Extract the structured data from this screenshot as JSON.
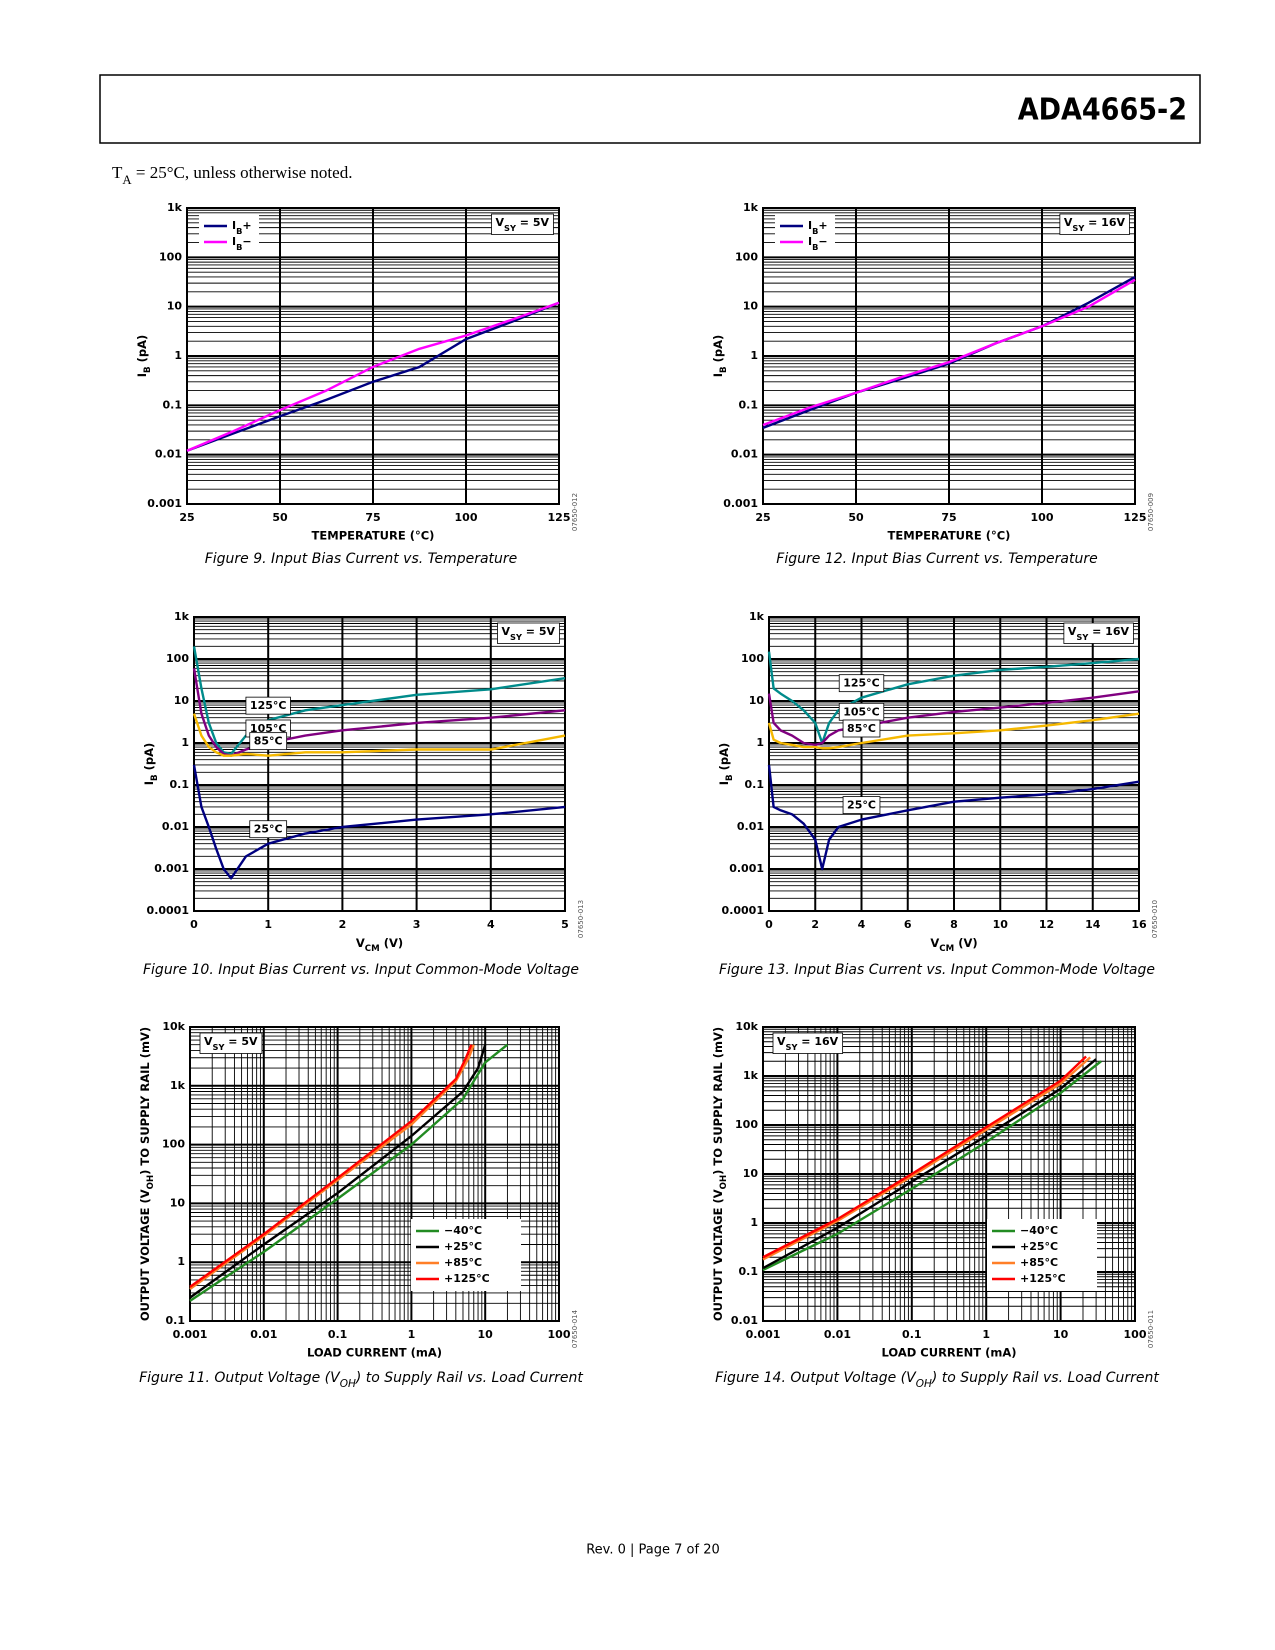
{
  "header": {
    "title": "ADA4665-2"
  },
  "note": [
    "T",
    "A",
    " = 25°C, unless otherwise noted."
  ],
  "footer": "Rev. 0 | Page 7 of 20",
  "chart_data": [
    {
      "type": "line",
      "title": "Figure 9. Input Bias Current vs. Temperature",
      "code": "07650-012",
      "xlabel": "TEMPERATURE (°C)",
      "ylabel": [
        "I",
        "B",
        " (pA)"
      ],
      "annotation": [
        "V",
        "SY",
        " = 5V"
      ],
      "annotation_corner": "upper right",
      "legend": "upper left",
      "x": [
        25,
        37.5,
        50,
        62.5,
        75,
        87.5,
        100,
        112.5,
        125
      ],
      "xlim": [
        25,
        125
      ],
      "xticks": [
        25,
        50,
        75,
        100,
        125
      ],
      "ylog": true,
      "ylim": [
        0.001,
        1000
      ],
      "yticks": [
        0.001,
        0.01,
        0.1,
        1,
        10,
        100,
        {
          "value": 1000,
          "label": "1k"
        }
      ],
      "grid": true,
      "series": [
        {
          "name": [
            "I",
            "B",
            "+"
          ],
          "color": "#000080",
          "values": [
            0.012,
            0.027,
            0.06,
            0.13,
            0.3,
            0.6,
            2.2,
            5,
            12
          ]
        },
        {
          "name": [
            "I",
            "B",
            "−"
          ],
          "color": "#ff00ff",
          "values": [
            0.012,
            0.03,
            0.08,
            0.2,
            0.6,
            1.4,
            2.6,
            5.5,
            12
          ]
        }
      ]
    },
    {
      "type": "line",
      "title": "Figure 10. Input Bias Current vs. Input Common-Mode Voltage",
      "code": "07650-013",
      "xlabel": [
        "V",
        "CM",
        " (V)"
      ],
      "ylabel": [
        "I",
        "B",
        " (pA)"
      ],
      "annotation": [
        "V",
        "SY",
        " = 5V"
      ],
      "annotation_corner": "upper right",
      "legend": "inline",
      "x": [
        0,
        0.1,
        0.2,
        0.3,
        0.4,
        0.5,
        0.7,
        1,
        1.5,
        2,
        3,
        4,
        5
      ],
      "xlim": [
        0,
        5
      ],
      "xticks": [
        0,
        1,
        2,
        3,
        4,
        5
      ],
      "ylog": true,
      "ylim": [
        0.0001,
        1000
      ],
      "yticks": [
        0.0001,
        0.001,
        0.01,
        0.1,
        1,
        10,
        100,
        {
          "value": 1000,
          "label": "1k"
        }
      ],
      "grid": true,
      "series": [
        {
          "name": "125°C",
          "color": "#008b8b",
          "values": [
            200,
            20,
            3,
            1,
            0.6,
            0.55,
            1.5,
            3.5,
            6,
            8,
            14,
            19,
            35
          ]
        },
        {
          "name": "105°C",
          "color": "#800080",
          "values": [
            60,
            5,
            1.5,
            0.8,
            0.55,
            0.5,
            0.7,
            1,
            1.5,
            2,
            3,
            4,
            6
          ]
        },
        {
          "name": "85°C",
          "color": "#f5b800",
          "values": [
            5,
            1.5,
            0.8,
            0.6,
            0.5,
            0.5,
            0.55,
            0.5,
            0.6,
            0.6,
            0.7,
            0.7,
            1.5
          ]
        },
        {
          "name": "25°C",
          "color": "#000080",
          "values": [
            0.3,
            0.03,
            0.01,
            0.003,
            0.001,
            0.0006,
            0.002,
            0.004,
            0.007,
            0.01,
            0.015,
            0.02,
            0.03
          ]
        }
      ]
    },
    {
      "type": "line",
      "title": [
        "Figure 11. Output Voltage (V",
        "OH",
        ") to Supply Rail vs. Load Current"
      ],
      "code": "07650-014",
      "xlabel": "LOAD CURRENT (mA)",
      "ylabel": [
        "OUTPUT VOLTAGE (V",
        "OH",
        ") TO SUPPLY RAIL (mV)"
      ],
      "annotation": [
        "V",
        "SY",
        " = 5V"
      ],
      "annotation_corner": "upper left",
      "legend": "lower right",
      "xlog": true,
      "xlim": [
        0.001,
        100
      ],
      "xticks": [
        0.001,
        0.01,
        0.1,
        1,
        10,
        100
      ],
      "ylog": true,
      "ylim": [
        0.1,
        10000
      ],
      "yticks": [
        0.1,
        1,
        10,
        100,
        {
          "value": 1000,
          "label": "1k"
        },
        {
          "value": 10000,
          "label": "10k"
        }
      ],
      "grid": true,
      "series": [
        {
          "name": "−40°C",
          "color": "#228b22",
          "x": [
            0.001,
            0.01,
            0.1,
            1,
            5,
            10,
            20
          ],
          "values": [
            0.22,
            1.5,
            12,
            100,
            600,
            2500,
            5000
          ]
        },
        {
          "name": "+25°C",
          "color": "#000000",
          "x": [
            0.001,
            0.01,
            0.1,
            1,
            5,
            8,
            10
          ],
          "values": [
            0.25,
            2,
            15,
            140,
            800,
            2000,
            5000
          ]
        },
        {
          "name": "+85°C",
          "color": "#ff7f27",
          "x": [
            0.001,
            0.01,
            0.1,
            1,
            4,
            6,
            7
          ],
          "values": [
            0.35,
            2.8,
            25,
            220,
            1200,
            3000,
            5000
          ]
        },
        {
          "name": "+125°C",
          "color": "#ff0000",
          "x": [
            0.001,
            0.01,
            0.1,
            1,
            4,
            5.5,
            6.5
          ],
          "values": [
            0.38,
            3,
            27,
            250,
            1300,
            3000,
            5000
          ]
        }
      ]
    },
    {
      "type": "line",
      "title": "Figure 12. Input Bias Current vs. Temperature",
      "code": "07650-009",
      "xlabel": "TEMPERATURE (°C)",
      "ylabel": [
        "I",
        "B",
        " (pA)"
      ],
      "annotation": [
        "V",
        "SY",
        " = 16V"
      ],
      "annotation_corner": "upper right",
      "legend": "upper left",
      "x": [
        25,
        37.5,
        50,
        62.5,
        75,
        87.5,
        100,
        112.5,
        125
      ],
      "xlim": [
        25,
        125
      ],
      "xticks": [
        25,
        50,
        75,
        100,
        125
      ],
      "ylog": true,
      "ylim": [
        0.001,
        1000
      ],
      "yticks": [
        0.001,
        0.01,
        0.1,
        1,
        10,
        100,
        {
          "value": 1000,
          "label": "1k"
        }
      ],
      "grid": true,
      "series": [
        {
          "name": [
            "I",
            "B",
            "+"
          ],
          "color": "#000080",
          "values": [
            0.035,
            0.08,
            0.18,
            0.35,
            0.7,
            1.8,
            4,
            12,
            40
          ]
        },
        {
          "name": [
            "I",
            "B",
            "−"
          ],
          "color": "#ff00ff",
          "values": [
            0.04,
            0.09,
            0.18,
            0.38,
            0.75,
            1.8,
            4,
            10,
            35
          ]
        }
      ]
    },
    {
      "type": "line",
      "title": "Figure 13. Input Bias Current vs. Input Common-Mode Voltage",
      "code": "07650-010",
      "xlabel": [
        "V",
        "CM",
        " (V)"
      ],
      "ylabel": [
        "I",
        "B",
        " (pA)"
      ],
      "annotation": [
        "V",
        "SY",
        " = 16V"
      ],
      "annotation_corner": "upper right",
      "legend": "inline",
      "x": [
        0,
        0.2,
        0.5,
        1,
        1.5,
        2,
        2.3,
        2.6,
        3,
        4,
        6,
        8,
        10,
        12,
        14,
        16
      ],
      "xlim": [
        0,
        16
      ],
      "xticks": [
        0,
        2,
        4,
        6,
        8,
        10,
        12,
        14,
        16
      ],
      "ylog": true,
      "ylim": [
        0.0001,
        1000
      ],
      "yticks": [
        0.0001,
        0.001,
        0.01,
        0.1,
        1,
        10,
        100,
        {
          "value": 1000,
          "label": "1k"
        }
      ],
      "grid": true,
      "series": [
        {
          "name": "125°C",
          "color": "#008b8b",
          "values": [
            150,
            20,
            15,
            10,
            6,
            3,
            1,
            3,
            6,
            12,
            25,
            40,
            55,
            65,
            80,
            100
          ]
        },
        {
          "name": "105°C",
          "color": "#800080",
          "values": [
            15,
            3,
            2,
            1.5,
            1,
            0.9,
            1,
            1.5,
            2,
            2.5,
            4,
            5.5,
            7,
            9,
            12,
            17
          ]
        },
        {
          "name": "85°C",
          "color": "#f5b800",
          "values": [
            3,
            1.2,
            1,
            0.9,
            0.8,
            0.8,
            0.75,
            0.75,
            0.8,
            1,
            1.5,
            1.7,
            2,
            2.6,
            3.5,
            5
          ]
        },
        {
          "name": "25°C",
          "color": "#000080",
          "values": [
            0.3,
            0.03,
            0.025,
            0.02,
            0.012,
            0.005,
            0.001,
            0.005,
            0.01,
            0.015,
            0.025,
            0.04,
            0.05,
            0.06,
            0.08,
            0.12
          ]
        }
      ]
    },
    {
      "type": "line",
      "title": [
        "Figure 14. Output Voltage (V",
        "OH",
        ") to Supply Rail vs. Load Current"
      ],
      "code": "07650-011",
      "xlabel": "LOAD CURRENT (mA)",
      "ylabel": [
        "OUTPUT VOLTAGE (V",
        "OH",
        ") TO SUPPLY RAIL (mV)"
      ],
      "annotation": [
        "V",
        "SY",
        " = 16V"
      ],
      "annotation_corner": "upper left",
      "legend": "lower right",
      "xlog": true,
      "xlim": [
        0.001,
        100
      ],
      "xticks": [
        0.001,
        0.01,
        0.1,
        1,
        10,
        100
      ],
      "ylog": true,
      "ylim": [
        0.01,
        10000
      ],
      "yticks": [
        0.01,
        0.1,
        1,
        10,
        100,
        {
          "value": 1000,
          "label": "1k"
        },
        {
          "value": 10000,
          "label": "10k"
        }
      ],
      "grid": true,
      "series": [
        {
          "name": "−40°C",
          "color": "#228b22",
          "x": [
            0.001,
            0.01,
            0.1,
            1,
            10,
            35
          ],
          "values": [
            0.11,
            0.6,
            5,
            45,
            450,
            2000
          ]
        },
        {
          "name": "+25°C",
          "color": "#000000",
          "x": [
            0.001,
            0.01,
            0.1,
            1,
            10,
            30
          ],
          "values": [
            0.12,
            0.8,
            7,
            60,
            550,
            2200
          ]
        },
        {
          "name": "+85°C",
          "color": "#ff7f27",
          "x": [
            0.001,
            0.01,
            0.1,
            1,
            10,
            25
          ],
          "values": [
            0.18,
            1.1,
            9,
            80,
            700,
            2400
          ]
        },
        {
          "name": "+125°C",
          "color": "#ff0000",
          "x": [
            0.001,
            0.01,
            0.1,
            1,
            10,
            22
          ],
          "values": [
            0.2,
            1.2,
            10,
            90,
            800,
            2500
          ]
        }
      ]
    }
  ]
}
